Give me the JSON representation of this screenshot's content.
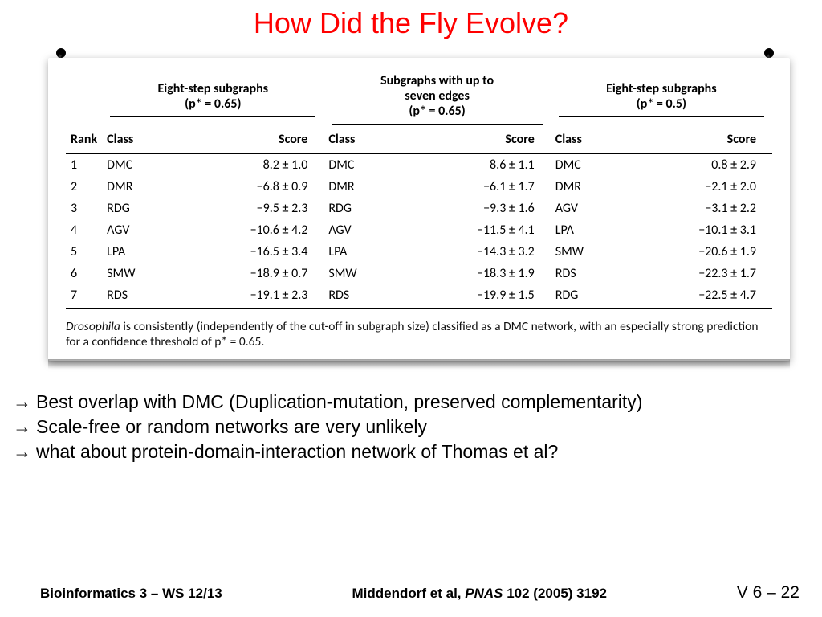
{
  "title": "How Did the Fly Evolve?",
  "table": {
    "groups": [
      {
        "title_line1": "Eight-step subgraphs",
        "title_line2": "(p* = 0.65)"
      },
      {
        "title_line1": "Subgraphs with up to",
        "title_line2": "seven edges",
        "title_line3": "(p* = 0.65)"
      },
      {
        "title_line1": "Eight-step subgraphs",
        "title_line2": "(p* = 0.5)"
      }
    ],
    "headers": {
      "rank": "Rank",
      "class": "Class",
      "score": "Score"
    },
    "rows": [
      {
        "rank": "1",
        "c1": "DMC",
        "s1": "8.2 ± 1.0",
        "c2": "DMC",
        "s2": "8.6 ± 1.1",
        "c3": "DMC",
        "s3": "0.8 ± 2.9"
      },
      {
        "rank": "2",
        "c1": "DMR",
        "s1": "−6.8 ± 0.9",
        "c2": "DMR",
        "s2": "−6.1 ± 1.7",
        "c3": "DMR",
        "s3": "−2.1 ± 2.0"
      },
      {
        "rank": "3",
        "c1": "RDG",
        "s1": "−9.5 ± 2.3",
        "c2": "RDG",
        "s2": "−9.3 ± 1.6",
        "c3": "AGV",
        "s3": "−3.1 ± 2.2"
      },
      {
        "rank": "4",
        "c1": "AGV",
        "s1": "−10.6 ± 4.2",
        "c2": "AGV",
        "s2": "−11.5 ± 4.1",
        "c3": "LPA",
        "s3": "−10.1 ± 3.1"
      },
      {
        "rank": "5",
        "c1": "LPA",
        "s1": "−16.5 ± 3.4",
        "c2": "LPA",
        "s2": "−14.3 ± 3.2",
        "c3": "SMW",
        "s3": "−20.6 ± 1.9"
      },
      {
        "rank": "6",
        "c1": "SMW",
        "s1": "−18.9 ± 0.7",
        "c2": "SMW",
        "s2": "−18.3 ± 1.9",
        "c3": "RDS",
        "s3": "−22.3 ± 1.7"
      },
      {
        "rank": "7",
        "c1": "RDS",
        "s1": "−19.1 ± 2.3",
        "c2": "RDS",
        "s2": "−19.9 ± 1.5",
        "c3": "RDG",
        "s3": "−22.5 ± 4.7"
      }
    ],
    "caption_prefix_italic": "Drosophila",
    "caption_rest": " is consistently (independently of the cut-off in subgraph size) classified as a DMC network, with an especially strong prediction for a confidence threshold of p* = 0.65."
  },
  "bullets": {
    "b1": "Best overlap with DMC (Duplication-mutation, preserved complementarity)",
    "b2": "Scale-free or random networks are very unlikely",
    "b3": "what about protein-domain-interaction network of  Thomas et al?"
  },
  "footer": {
    "left": "Bioinformatics 3 – WS 12/13",
    "mid_author": "Middendorf et al, ",
    "mid_journal": "PNAS",
    "mid_ref": " 102 (2005) 3192",
    "right_prefix": "V 6  –  ",
    "right_page": "22"
  }
}
